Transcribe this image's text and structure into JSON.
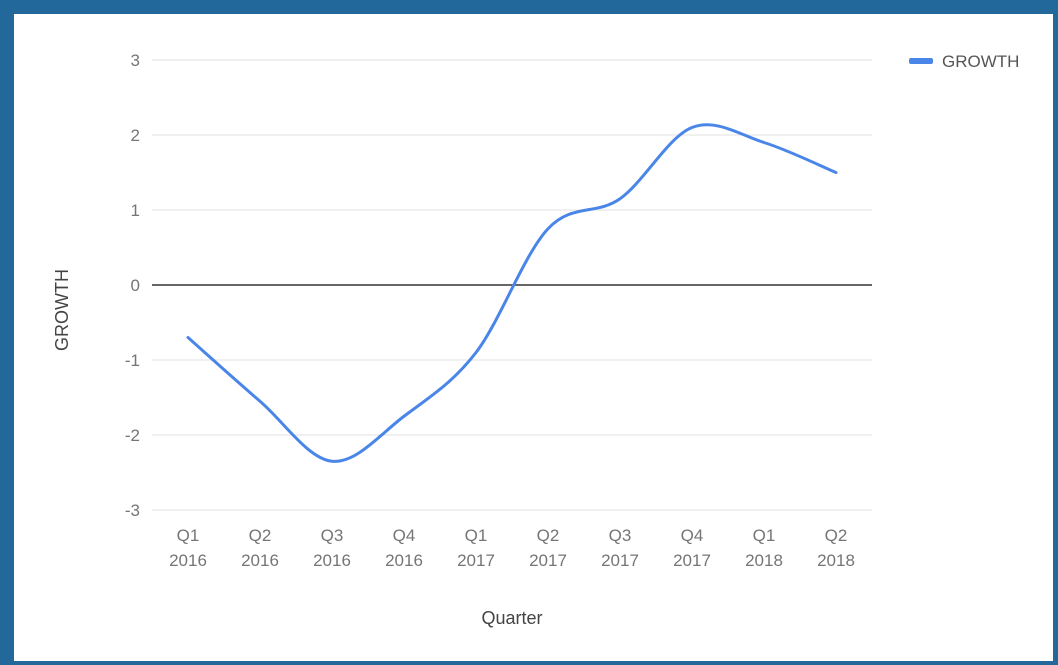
{
  "chart_data": {
    "type": "line",
    "title": "",
    "xlabel": "Quarter",
    "ylabel": "GROWTH",
    "ylim": [
      -3,
      3
    ],
    "yticks": [
      "3",
      "2",
      "1",
      "0",
      "-1",
      "-2",
      "-3"
    ],
    "categories": [
      [
        "Q1",
        "2016"
      ],
      [
        "Q2",
        "2016"
      ],
      [
        "Q3",
        "2016"
      ],
      [
        "Q4",
        "2016"
      ],
      [
        "Q1",
        "2017"
      ],
      [
        "Q2",
        "2017"
      ],
      [
        "Q3",
        "2017"
      ],
      [
        "Q4",
        "2017"
      ],
      [
        "Q1",
        "2018"
      ],
      [
        "Q2",
        "2018"
      ]
    ],
    "series": [
      {
        "name": "GROWTH",
        "values": [
          -0.7,
          -1.55,
          -2.35,
          -1.75,
          -0.9,
          0.75,
          1.15,
          2.1,
          1.9,
          1.5
        ]
      }
    ],
    "grid": true,
    "legend_position": "top-right",
    "colors": {
      "line": "#4a86e8",
      "grid": "#e0e0e0",
      "zero_line": "#333333",
      "frame_border": "#23689b"
    }
  }
}
